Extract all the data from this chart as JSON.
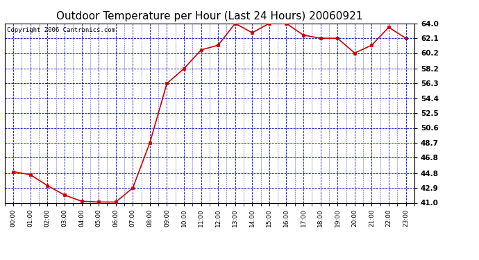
{
  "title": "Outdoor Temperature per Hour (Last 24 Hours) 20060921",
  "copyright": "Copyright 2006 Cantronics.com",
  "hours": [
    "00:00",
    "01:00",
    "02:00",
    "03:00",
    "04:00",
    "05:00",
    "06:00",
    "07:00",
    "08:00",
    "09:00",
    "10:00",
    "11:00",
    "12:00",
    "13:00",
    "14:00",
    "15:00",
    "16:00",
    "17:00",
    "18:00",
    "19:00",
    "20:00",
    "21:00",
    "22:00",
    "23:00"
  ],
  "temps": [
    45.0,
    44.6,
    43.2,
    42.0,
    41.2,
    41.1,
    41.1,
    42.9,
    48.7,
    56.3,
    58.2,
    60.6,
    61.2,
    64.0,
    62.8,
    64.0,
    64.0,
    62.5,
    62.1,
    62.1,
    60.2,
    61.2,
    63.5,
    62.1
  ],
  "line_color": "#cc0000",
  "marker_color": "#cc0000",
  "bg_color": "#ffffff",
  "plot_bg_color": "#ffffff",
  "grid_color": "#0000cc",
  "axes_color": "#000000",
  "tick_color": "#000000",
  "ylim_min": 41.0,
  "ylim_max": 64.0,
  "yticks": [
    41.0,
    42.9,
    44.8,
    46.8,
    48.7,
    50.6,
    52.5,
    54.4,
    56.3,
    58.2,
    60.2,
    62.1,
    64.0
  ],
  "ytick_labels": [
    "41.0",
    "42.9",
    "44.8",
    "46.8",
    "48.7",
    "50.6",
    "52.5",
    "54.4",
    "56.3",
    "58.2",
    "60.2",
    "62.1",
    "64.0"
  ],
  "title_fontsize": 11,
  "copyright_fontsize": 6.5,
  "tick_labelsize": 7.5,
  "xtick_labelsize": 6.5
}
